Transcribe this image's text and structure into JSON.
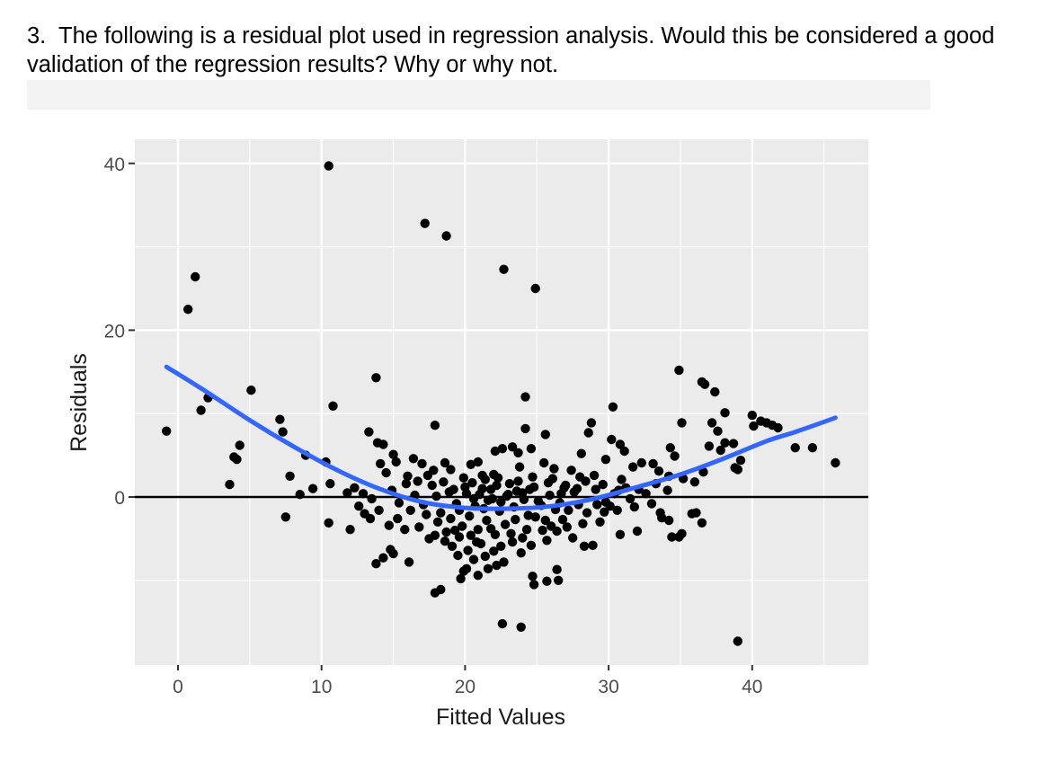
{
  "question": {
    "number": "3.",
    "text": "The following is a residual plot used in regression analysis.  Would this be considered a good validation of the regression results?  Why or why not."
  },
  "colors": {
    "panel": "#ebebeb",
    "grid": "#ffffff",
    "points": "#000000",
    "smooth": "#3366ff",
    "zero_line": "#000000",
    "axis_text": "#4d4d4d",
    "answer_box": "#f3f3f3"
  },
  "chart_data": {
    "type": "scatter",
    "title": "",
    "xlabel": "Fitted Values",
    "ylabel": "Residuals",
    "xlim": [
      -3,
      48
    ],
    "ylim": [
      -20,
      43
    ],
    "x_ticks": [
      0,
      10,
      20,
      30,
      40
    ],
    "y_ticks": [
      0,
      20,
      40
    ],
    "grid": true,
    "legend": "none",
    "hline": 0,
    "smooth": {
      "name": "",
      "x": [
        -0.8,
        2,
        5,
        8,
        11,
        14,
        17,
        20,
        23,
        26,
        29,
        32,
        35,
        38,
        41,
        43,
        45.8
      ],
      "y": [
        15.6,
        12.6,
        9.2,
        6.1,
        3.3,
        1.0,
        -0.6,
        -1.3,
        -1.4,
        -1.1,
        -0.2,
        1.2,
        2.7,
        4.6,
        6.7,
        7.8,
        9.5
      ]
    },
    "points": [
      [
        10.5,
        39.7
      ],
      [
        17.2,
        32.8
      ],
      [
        18.7,
        31.3
      ],
      [
        22.7,
        27.3
      ],
      [
        24.9,
        25.0
      ],
      [
        1.2,
        26.4
      ],
      [
        0.7,
        22.5
      ],
      [
        13.8,
        14.3
      ],
      [
        2.1,
        11.9
      ],
      [
        1.6,
        10.4
      ],
      [
        10.8,
        10.9
      ],
      [
        5.1,
        12.8
      ],
      [
        -0.8,
        7.9
      ],
      [
        7.1,
        9.3
      ],
      [
        7.3,
        7.8
      ],
      [
        4.3,
        6.2
      ],
      [
        3.9,
        4.8
      ],
      [
        4.1,
        4.5
      ],
      [
        3.6,
        1.5
      ],
      [
        7.8,
        2.5
      ],
      [
        7.5,
        -2.4
      ],
      [
        8.9,
        5.0
      ],
      [
        8.5,
        0.3
      ],
      [
        9.4,
        1.0
      ],
      [
        10.3,
        4.2
      ],
      [
        10.6,
        1.6
      ],
      [
        10.5,
        -3.1
      ],
      [
        12.0,
        -3.9
      ],
      [
        11.8,
        0.5
      ],
      [
        14.3,
        -7.3
      ],
      [
        14.8,
        -6.3
      ],
      [
        15.0,
        -6.8
      ],
      [
        13.8,
        -8.0
      ],
      [
        16.1,
        -7.8
      ],
      [
        18.3,
        -11.1
      ],
      [
        17.9,
        -11.5
      ],
      [
        19.7,
        -9.8
      ],
      [
        20.1,
        -8.6
      ],
      [
        22.6,
        -15.2
      ],
      [
        23.9,
        -15.6
      ],
      [
        24.7,
        -9.5
      ],
      [
        24.8,
        -10.5
      ],
      [
        25.7,
        -10.1
      ],
      [
        26.4,
        -8.7
      ],
      [
        26.5,
        -10.0
      ],
      [
        39.0,
        -17.3
      ],
      [
        17.9,
        8.6
      ],
      [
        24.2,
        12.0
      ],
      [
        24.2,
        8.2
      ],
      [
        25.6,
        7.5
      ],
      [
        30.3,
        10.8
      ],
      [
        28.8,
        8.9
      ],
      [
        30.2,
        6.9
      ],
      [
        30.8,
        6.3
      ],
      [
        34.9,
        15.2
      ],
      [
        36.7,
        13.5
      ],
      [
        37.4,
        12.6
      ],
      [
        36.5,
        13.8
      ],
      [
        35.1,
        8.9
      ],
      [
        37.2,
        8.9
      ],
      [
        38.1,
        10.1
      ],
      [
        37.6,
        7.9
      ],
      [
        38.7,
        6.4
      ],
      [
        40.0,
        9.8
      ],
      [
        40.6,
        9.1
      ],
      [
        41.0,
        8.9
      ],
      [
        41.4,
        8.6
      ],
      [
        41.8,
        8.3
      ],
      [
        40.1,
        8.5
      ],
      [
        43.0,
        5.9
      ],
      [
        44.2,
        5.9
      ],
      [
        45.8,
        4.1
      ],
      [
        39.2,
        4.4
      ],
      [
        38.8,
        3.5
      ],
      [
        39.0,
        3.3
      ],
      [
        37.0,
        6.1
      ],
      [
        37.8,
        5.6
      ],
      [
        38.1,
        6.5
      ],
      [
        34.3,
        5.9
      ],
      [
        34.6,
        4.9
      ],
      [
        33.1,
        4.0
      ],
      [
        35.8,
        -2.0
      ],
      [
        36.1,
        -1.9
      ],
      [
        36.5,
        -3.1
      ],
      [
        35.1,
        -4.4
      ],
      [
        34.9,
        -4.8
      ],
      [
        34.4,
        -4.8
      ],
      [
        32.0,
        -4.1
      ],
      [
        30.8,
        -4.5
      ],
      [
        28.3,
        -5.9
      ],
      [
        13.3,
        7.8
      ],
      [
        13.9,
        6.5
      ],
      [
        14.3,
        6.3
      ],
      [
        15.0,
        5.1
      ],
      [
        14.1,
        4.0
      ],
      [
        15.2,
        4.2
      ],
      [
        16.4,
        4.6
      ],
      [
        17.0,
        4.0
      ],
      [
        14.5,
        2.9
      ],
      [
        16.0,
        2.5
      ],
      [
        17.8,
        3.2
      ],
      [
        18.6,
        4.1
      ],
      [
        19.0,
        3.3
      ],
      [
        20.4,
        3.9
      ],
      [
        20.9,
        4.2
      ],
      [
        22.1,
        5.5
      ],
      [
        22.6,
        5.8
      ],
      [
        23.3,
        6.0
      ],
      [
        23.7,
        5.3
      ],
      [
        24.6,
        5.8
      ],
      [
        21.2,
        2.6
      ],
      [
        22.0,
        2.7
      ],
      [
        23.8,
        3.6
      ],
      [
        25.5,
        4.1
      ],
      [
        26.2,
        3.4
      ],
      [
        27.4,
        3.2
      ],
      [
        28.1,
        5.2
      ],
      [
        28.6,
        7.7
      ],
      [
        29.8,
        4.5
      ],
      [
        29.0,
        2.6
      ],
      [
        31.1,
        5.5
      ],
      [
        31.7,
        3.6
      ],
      [
        32.3,
        4.1
      ],
      [
        33.5,
        3.1
      ],
      [
        34.2,
        2.5
      ],
      [
        35.2,
        2.2
      ],
      [
        36.0,
        1.8
      ],
      [
        36.6,
        3.0
      ],
      [
        31.2,
        1.1
      ],
      [
        33.3,
        1.6
      ],
      [
        32.6,
        0.4
      ],
      [
        34.1,
        0.8
      ],
      [
        30.6,
        -1.6
      ],
      [
        31.8,
        -1.2
      ],
      [
        33.0,
        -0.8
      ],
      [
        33.7,
        -2.5
      ],
      [
        33.6,
        -1.9
      ],
      [
        34.2,
        -2.8
      ],
      [
        12.3,
        1.1
      ],
      [
        12.9,
        0.4
      ],
      [
        13.5,
        -0.2
      ],
      [
        12.6,
        -1.1
      ],
      [
        13.0,
        -2.0
      ],
      [
        13.4,
        -2.6
      ],
      [
        14.0,
        -1.6
      ],
      [
        15.3,
        -2.6
      ],
      [
        14.7,
        -3.4
      ],
      [
        15.8,
        -3.9
      ],
      [
        16.2,
        -1.6
      ],
      [
        16.8,
        -3.6
      ],
      [
        17.5,
        -5.0
      ],
      [
        17.3,
        -2.1
      ],
      [
        18.7,
        -4.2
      ],
      [
        19.1,
        -5.9
      ],
      [
        19.6,
        -4.8
      ],
      [
        20.2,
        -6.4
      ],
      [
        20.8,
        -5.4
      ],
      [
        21.4,
        -7.1
      ],
      [
        22.0,
        -6.5
      ],
      [
        22.7,
        -7.8
      ],
      [
        23.3,
        -5.4
      ],
      [
        23.9,
        -6.7
      ],
      [
        24.6,
        -5.8
      ],
      [
        25.4,
        -4.0
      ],
      [
        26.0,
        -3.5
      ],
      [
        26.8,
        -2.7
      ],
      [
        27.5,
        -4.9
      ],
      [
        28.2,
        -3.2
      ],
      [
        28.9,
        -5.8
      ],
      [
        29.4,
        -3.0
      ],
      [
        29.7,
        -1.8
      ],
      [
        27.9,
        -0.9
      ],
      [
        26.7,
        0.4
      ],
      [
        25.8,
        1.7
      ],
      [
        24.8,
        1.2
      ],
      [
        23.6,
        0.7
      ],
      [
        22.5,
        -0.6
      ],
      [
        21.8,
        0.9
      ],
      [
        21.3,
        -1.4
      ],
      [
        20.6,
        -0.2
      ],
      [
        20.0,
        1.2
      ],
      [
        19.4,
        -0.8
      ],
      [
        18.9,
        0.6
      ],
      [
        18.3,
        -1.9
      ],
      [
        17.7,
        1.4
      ],
      [
        17.1,
        -0.9
      ],
      [
        16.5,
        0.2
      ],
      [
        15.9,
        1.6
      ],
      [
        15.4,
        -0.7
      ],
      [
        14.9,
        0.8
      ],
      [
        19.9,
        2.3
      ],
      [
        20.5,
        1.7
      ],
      [
        21.0,
        0.3
      ],
      [
        21.6,
        -0.4
      ],
      [
        22.2,
        1.4
      ],
      [
        22.9,
        0.1
      ],
      [
        23.4,
        -1.2
      ],
      [
        24.0,
        0.5
      ],
      [
        24.4,
        -2.2
      ],
      [
        25.1,
        -0.5
      ],
      [
        25.6,
        -2.8
      ],
      [
        26.3,
        -1.5
      ],
      [
        26.9,
        1.1
      ],
      [
        27.6,
        0.6
      ],
      [
        28.4,
        1.9
      ],
      [
        29.1,
        0.9
      ],
      [
        29.8,
        -0.6
      ],
      [
        30.4,
        0.4
      ],
      [
        30.9,
        2.1
      ],
      [
        31.5,
        -0.2
      ],
      [
        32.1,
        0.9
      ],
      [
        18.1,
        -3.0
      ],
      [
        19.0,
        -2.6
      ],
      [
        19.8,
        -3.5
      ],
      [
        20.3,
        -2.3
      ],
      [
        20.9,
        -3.9
      ],
      [
        21.5,
        -2.8
      ],
      [
        22.1,
        -4.5
      ],
      [
        22.8,
        -3.3
      ],
      [
        23.5,
        -2.7
      ],
      [
        24.3,
        -3.9
      ],
      [
        24.9,
        -2.4
      ],
      [
        25.7,
        -5.2
      ],
      [
        26.4,
        -4.1
      ],
      [
        27.1,
        -3.6
      ],
      [
        16.7,
        1.9
      ],
      [
        17.4,
        2.6
      ],
      [
        18.0,
        0.1
      ],
      [
        18.5,
        1.8
      ],
      [
        19.2,
        0.9
      ],
      [
        19.6,
        -1.6
      ],
      [
        20.1,
        0.4
      ],
      [
        20.7,
        -1.1
      ],
      [
        21.2,
        1.0
      ],
      [
        21.9,
        -0.2
      ],
      [
        22.4,
        -1.7
      ],
      [
        23.0,
        0.3
      ],
      [
        23.7,
        1.9
      ],
      [
        24.1,
        -0.3
      ],
      [
        24.5,
        0.9
      ],
      [
        25.3,
        -1.0
      ],
      [
        25.9,
        0.2
      ],
      [
        26.6,
        -0.7
      ],
      [
        27.2,
        -1.6
      ],
      [
        27.8,
        1.0
      ],
      [
        28.5,
        -1.9
      ],
      [
        29.2,
        -0.9
      ],
      [
        29.6,
        1.5
      ],
      [
        30.1,
        -1.1
      ],
      [
        30.7,
        0.8
      ],
      [
        21.4,
        2.1
      ],
      [
        22.3,
        2.3
      ],
      [
        23.1,
        1.6
      ],
      [
        24.7,
        2.4
      ],
      [
        26.1,
        2.2
      ],
      [
        27.0,
        1.4
      ],
      [
        28.0,
        2.4
      ],
      [
        20.4,
        -4.6
      ],
      [
        21.1,
        -5.6
      ],
      [
        21.8,
        -3.8
      ],
      [
        22.5,
        -5.9
      ],
      [
        23.2,
        -4.4
      ],
      [
        24.0,
        -4.9
      ],
      [
        19.3,
        -4.0
      ],
      [
        18.6,
        -5.3
      ],
      [
        17.9,
        -4.6
      ],
      [
        20.6,
        -7.5
      ],
      [
        21.6,
        -8.6
      ],
      [
        22.2,
        -8.2
      ],
      [
        19.9,
        -8.9
      ],
      [
        20.9,
        -9.4
      ],
      [
        19.5,
        -7.0
      ]
    ]
  }
}
